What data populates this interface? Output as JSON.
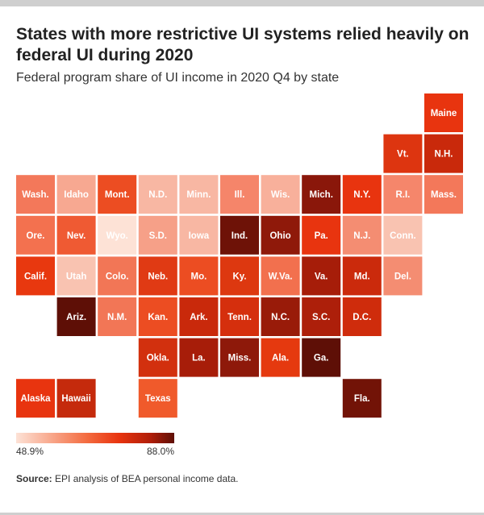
{
  "title": "States with more restrictive UI systems relied heavily on federal UI during 2020",
  "subtitle": "Federal program share of UI income in 2020 Q4 by state",
  "legend": {
    "min_label": "48.9%",
    "max_label": "88.0%"
  },
  "source": {
    "label": "Source:",
    "text": " EPI analysis of BEA personal income data."
  },
  "colors": {
    "lightest": "#fde2d6",
    "mid": "#f05a2b",
    "darkest": "#5e0f06",
    "bar_gray": "#cfcfcf"
  },
  "chart_data": {
    "type": "heatmap",
    "value_range": [
      48.9,
      88.0
    ],
    "value_unit": "%",
    "grid": {
      "rows": 7,
      "cols": 11
    },
    "states": [
      {
        "label": "Maine",
        "row": 0,
        "col": 10,
        "color": "#e8340f"
      },
      {
        "label": "Vt.",
        "row": 1,
        "col": 9,
        "color": "#dd3510"
      },
      {
        "label": "N.H.",
        "row": 1,
        "col": 10,
        "color": "#c9290b"
      },
      {
        "label": "Wash.",
        "row": 2,
        "col": 0,
        "color": "#f3785a"
      },
      {
        "label": "Idaho",
        "row": 2,
        "col": 1,
        "color": "#f7a891"
      },
      {
        "label": "Mont.",
        "row": 2,
        "col": 2,
        "color": "#ec4d22"
      },
      {
        "label": "N.D.",
        "row": 2,
        "col": 3,
        "color": "#f8b7a3"
      },
      {
        "label": "Minn.",
        "row": 2,
        "col": 4,
        "color": "#f8b7a3"
      },
      {
        "label": "Ill.",
        "row": 2,
        "col": 5,
        "color": "#f5856a"
      },
      {
        "label": "Wis.",
        "row": 2,
        "col": 6,
        "color": "#f8b09b"
      },
      {
        "label": "Mich.",
        "row": 2,
        "col": 7,
        "color": "#8a170a"
      },
      {
        "label": "N.Y.",
        "row": 2,
        "col": 8,
        "color": "#e8340f"
      },
      {
        "label": "R.I.",
        "row": 2,
        "col": 9,
        "color": "#f5866b"
      },
      {
        "label": "Mass.",
        "row": 2,
        "col": 10,
        "color": "#f3785a"
      },
      {
        "label": "Ore.",
        "row": 3,
        "col": 0,
        "color": "#f3714f"
      },
      {
        "label": "Nev.",
        "row": 3,
        "col": 1,
        "color": "#ef5a33"
      },
      {
        "label": "Wyo.",
        "row": 3,
        "col": 2,
        "color": "#fde2d6"
      },
      {
        "label": "S.D.",
        "row": 3,
        "col": 3,
        "color": "#f6a088"
      },
      {
        "label": "Iowa",
        "row": 3,
        "col": 4,
        "color": "#f8b7a3"
      },
      {
        "label": "Ind.",
        "row": 3,
        "col": 5,
        "color": "#6e1207"
      },
      {
        "label": "Ohio",
        "row": 3,
        "col": 6,
        "color": "#8f190a"
      },
      {
        "label": "Pa.",
        "row": 3,
        "col": 7,
        "color": "#e8340f"
      },
      {
        "label": "N.J.",
        "row": 3,
        "col": 8,
        "color": "#f48d72"
      },
      {
        "label": "Conn.",
        "row": 3,
        "col": 9,
        "color": "#f9c3b1"
      },
      {
        "label": "Calif.",
        "row": 4,
        "col": 0,
        "color": "#e8380f"
      },
      {
        "label": "Utah",
        "row": 4,
        "col": 1,
        "color": "#f9c3b1"
      },
      {
        "label": "Colo.",
        "row": 4,
        "col": 2,
        "color": "#f27656"
      },
      {
        "label": "Neb.",
        "row": 4,
        "col": 3,
        "color": "#e03a14"
      },
      {
        "label": "Mo.",
        "row": 4,
        "col": 4,
        "color": "#ec4d22"
      },
      {
        "label": "Ky.",
        "row": 4,
        "col": 5,
        "color": "#dd3810"
      },
      {
        "label": "W.Va.",
        "row": 4,
        "col": 6,
        "color": "#f2704e"
      },
      {
        "label": "Va.",
        "row": 4,
        "col": 7,
        "color": "#a61d09"
      },
      {
        "label": "Md.",
        "row": 4,
        "col": 8,
        "color": "#cb2a0c"
      },
      {
        "label": "Del.",
        "row": 4,
        "col": 9,
        "color": "#f48d72"
      },
      {
        "label": "Ariz.",
        "row": 5,
        "col": 1,
        "color": "#5e0f06"
      },
      {
        "label": "N.M.",
        "row": 5,
        "col": 2,
        "color": "#f27656"
      },
      {
        "label": "Kan.",
        "row": 5,
        "col": 3,
        "color": "#ec4d22"
      },
      {
        "label": "Ark.",
        "row": 5,
        "col": 4,
        "color": "#c9290b"
      },
      {
        "label": "Tenn.",
        "row": 5,
        "col": 5,
        "color": "#d52f0d"
      },
      {
        "label": "N.C.",
        "row": 5,
        "col": 6,
        "color": "#991b09"
      },
      {
        "label": "S.C.",
        "row": 5,
        "col": 7,
        "color": "#ad1f0a"
      },
      {
        "label": "D.C.",
        "row": 5,
        "col": 8,
        "color": "#cf2c0c"
      },
      {
        "label": "Okla.",
        "row": 6,
        "col": 3,
        "color": "#d2300e"
      },
      {
        "label": "La.",
        "row": 6,
        "col": 4,
        "color": "#a71d09"
      },
      {
        "label": "Miss.",
        "row": 6,
        "col": 5,
        "color": "#8e190a"
      },
      {
        "label": "Ala.",
        "row": 6,
        "col": 6,
        "color": "#e5390f"
      },
      {
        "label": "Ga.",
        "row": 6,
        "col": 7,
        "color": "#5e0f06"
      },
      {
        "label": "Alaska",
        "row": 7,
        "col": 0,
        "color": "#e8340f"
      },
      {
        "label": "Hawaii",
        "row": 7,
        "col": 1,
        "color": "#c52a0c"
      },
      {
        "label": "Texas",
        "row": 7,
        "col": 3,
        "color": "#f05a2b"
      },
      {
        "label": "Fla.",
        "row": 7,
        "col": 8,
        "color": "#721307"
      }
    ]
  }
}
